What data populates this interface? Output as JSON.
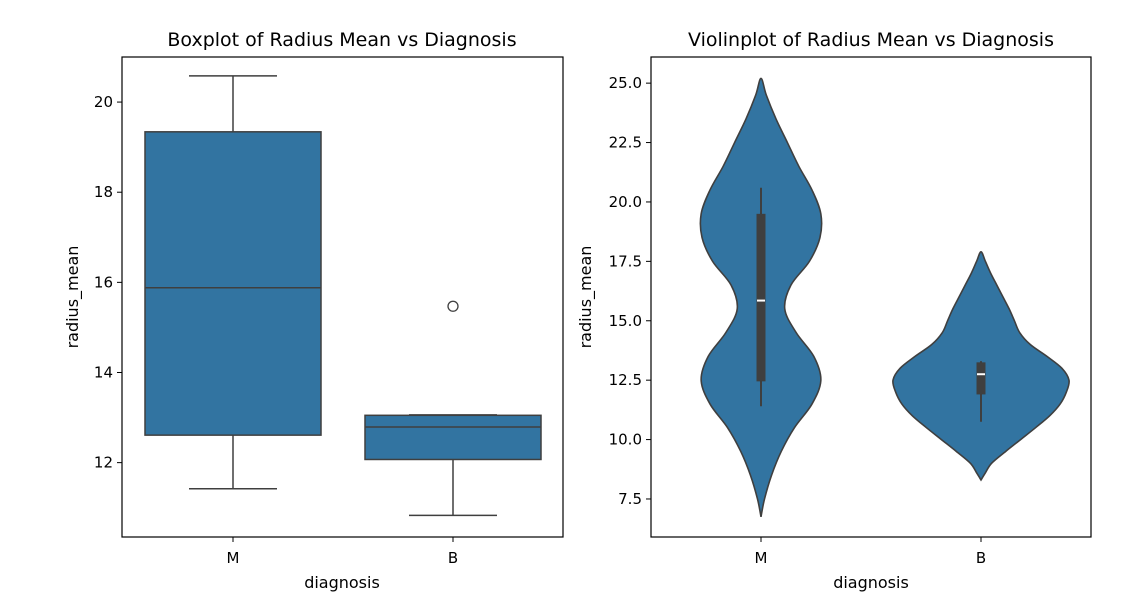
{
  "chart_data": [
    {
      "type": "box",
      "title": "Boxplot of Radius Mean vs Diagnosis",
      "xlabel": "diagnosis",
      "ylabel": "radius_mean",
      "categories": [
        "M",
        "B"
      ],
      "ylim": [
        10.35,
        21.0
      ],
      "yticks": [
        12,
        14,
        16,
        18,
        20
      ],
      "ytick_labels": [
        "12",
        "14",
        "16",
        "18",
        "20"
      ],
      "color": "#3274a1",
      "line_color": "#3f3f3f",
      "boxes": [
        {
          "category": "M",
          "whisker_low": 11.42,
          "q1": 12.61,
          "median": 15.88,
          "q3": 19.34,
          "whisker_high": 20.58,
          "outliers": []
        },
        {
          "category": "B",
          "whisker_low": 10.83,
          "q1": 12.07,
          "median": 12.79,
          "q3": 13.05,
          "whisker_high": 13.06,
          "outliers": [
            15.47
          ]
        }
      ]
    },
    {
      "type": "violin",
      "title": "Violinplot of Radius Mean vs Diagnosis",
      "xlabel": "diagnosis",
      "ylabel": "radius_mean",
      "categories": [
        "M",
        "B"
      ],
      "ylim": [
        5.9,
        26.1
      ],
      "yticks": [
        7.5,
        10.0,
        12.5,
        15.0,
        17.5,
        20.0,
        22.5,
        25.0
      ],
      "ytick_labels": [
        "7.5",
        "10.0",
        "12.5",
        "15.0",
        "17.5",
        "20.0",
        "22.5",
        "25.0"
      ],
      "color": "#3274a1",
      "line_color": "#3f3f3f",
      "violins": [
        {
          "category": "M",
          "range": [
            6.75,
            25.2
          ],
          "q1": 12.45,
          "median": 15.85,
          "q3": 19.5,
          "whisker_low": 11.4,
          "whisker_high": 20.6,
          "profile": [
            [
              6.75,
              0.0
            ],
            [
              7.5,
              0.04
            ],
            [
              8.5,
              0.12
            ],
            [
              9.5,
              0.23
            ],
            [
              10.5,
              0.38
            ],
            [
              11.5,
              0.58
            ],
            [
              12.5,
              0.68
            ],
            [
              13.5,
              0.6
            ],
            [
              14.5,
              0.4
            ],
            [
              15.5,
              0.27
            ],
            [
              16.5,
              0.34
            ],
            [
              17.5,
              0.55
            ],
            [
              18.5,
              0.67
            ],
            [
              19.5,
              0.68
            ],
            [
              20.5,
              0.58
            ],
            [
              21.5,
              0.43
            ],
            [
              22.5,
              0.3
            ],
            [
              23.5,
              0.17
            ],
            [
              24.5,
              0.06
            ],
            [
              25.2,
              0.0
            ]
          ]
        },
        {
          "category": "B",
          "range": [
            8.3,
            17.9
          ],
          "q1": 11.9,
          "median": 12.75,
          "q3": 13.25,
          "whisker_low": 10.75,
          "whisker_high": 13.3,
          "profile": [
            [
              8.3,
              0.0
            ],
            [
              8.6,
              0.05
            ],
            [
              9.0,
              0.12
            ],
            [
              9.5,
              0.28
            ],
            [
              10.0,
              0.45
            ],
            [
              10.5,
              0.62
            ],
            [
              11.0,
              0.78
            ],
            [
              11.5,
              0.9
            ],
            [
              12.0,
              0.97
            ],
            [
              12.5,
              1.0
            ],
            [
              13.0,
              0.92
            ],
            [
              13.5,
              0.75
            ],
            [
              14.0,
              0.56
            ],
            [
              14.5,
              0.44
            ],
            [
              15.0,
              0.38
            ],
            [
              15.5,
              0.32
            ],
            [
              16.0,
              0.25
            ],
            [
              16.5,
              0.18
            ],
            [
              17.0,
              0.11
            ],
            [
              17.5,
              0.05
            ],
            [
              17.9,
              0.0
            ]
          ]
        }
      ]
    }
  ]
}
